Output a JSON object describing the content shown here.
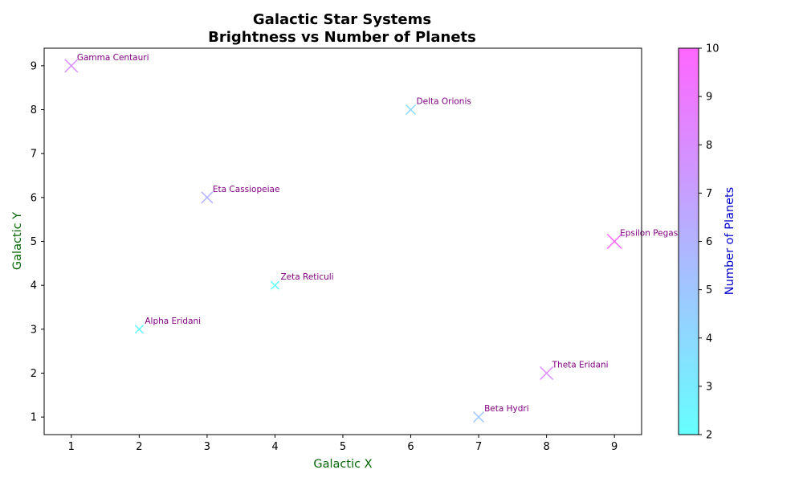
{
  "chart_data": {
    "type": "scatter",
    "title": "Galactic Star Systems",
    "subtitle": "Brightness vs Number of Planets",
    "xlabel": "Galactic X",
    "ylabel": "Galactic Y",
    "xlim": [
      0.6,
      9.4
    ],
    "ylim": [
      0.6,
      9.4
    ],
    "xticks": [
      1,
      2,
      3,
      4,
      5,
      6,
      7,
      8,
      9
    ],
    "yticks": [
      1,
      2,
      3,
      4,
      5,
      6,
      7,
      8,
      9
    ],
    "grid": false,
    "marker": "x",
    "colorbar": {
      "label": "Number of Planets",
      "min": 2,
      "max": 10,
      "ticks": [
        2,
        3,
        4,
        5,
        6,
        7,
        8,
        9,
        10
      ],
      "colormap": "cool",
      "colors": [
        "#66ffff",
        "#ff66ff"
      ]
    },
    "points": [
      {
        "name": "Alpha Eridani",
        "x": 2,
        "y": 3,
        "planets": 2
      },
      {
        "name": "Beta Hydri",
        "x": 7,
        "y": 1,
        "planets": 5
      },
      {
        "name": "Gamma Centauri",
        "x": 1,
        "y": 9,
        "planets": 8
      },
      {
        "name": "Delta Orionis",
        "x": 6,
        "y": 8,
        "planets": 4
      },
      {
        "name": "Epsilon Pegasi",
        "x": 9,
        "y": 5,
        "planets": 10
      },
      {
        "name": "Zeta Reticuli",
        "x": 4,
        "y": 4,
        "planets": 2
      },
      {
        "name": "Eta Cassiopeiae",
        "x": 3,
        "y": 6,
        "planets": 6
      },
      {
        "name": "Theta Eridani",
        "x": 8,
        "y": 2,
        "planets": 8
      }
    ],
    "label_color": "#800080",
    "axis_title_colors": {
      "x": "#006400",
      "y": "#006400",
      "colorbar": "#0000cd"
    }
  }
}
